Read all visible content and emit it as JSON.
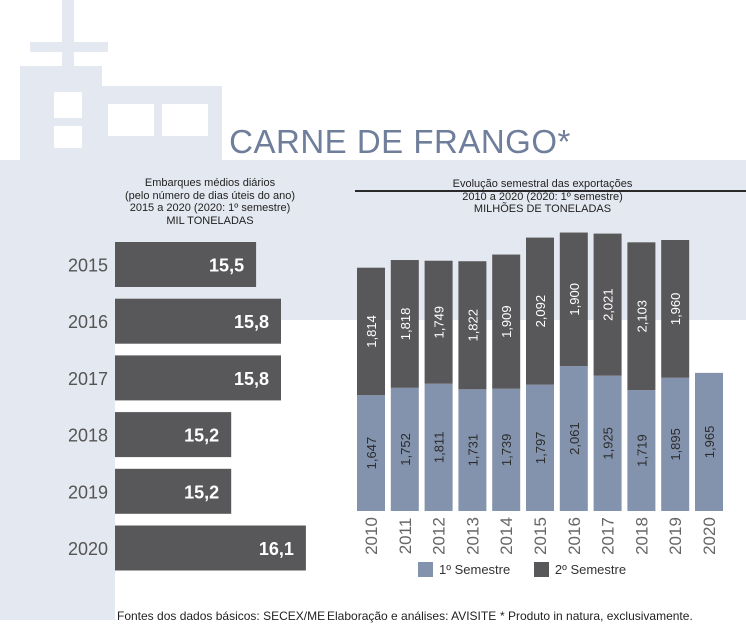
{
  "title": "CARNE DE FRANGO*",
  "left_panel": {
    "subtitle_lines": [
      "Embarques médios diários",
      "(pelo número de dias úteis do ano)",
      "2015 a 2020 (2020: 1º semestre)",
      "MIL TONELADAS"
    ]
  },
  "right_panel": {
    "subtitle_lines": [
      "Evolução semestral das exportações",
      "2010 a 2020 (2020: 1º semestre)",
      "MILHÕES DE  TONELADAS"
    ]
  },
  "legend": {
    "s1": "1º Semestre",
    "s2": "2º Semestre"
  },
  "footer": {
    "sources": "Fontes dos dados básicos: SECEX/ME",
    "analysis": "Elaboração e análises: AVISITE",
    "note": "* Produto in natura, exclusivamente."
  },
  "colors": {
    "dark_bar": "#58585a",
    "light_bar": "#8393ad",
    "title": "#6f7e9a",
    "background_ship": "#e4e8f0"
  },
  "chart_data": [
    {
      "type": "bar",
      "orientation": "horizontal",
      "categories": [
        "2015",
        "2016",
        "2017",
        "2018",
        "2019",
        "2020"
      ],
      "values": [
        15.5,
        15.8,
        15.8,
        15.2,
        15.2,
        16.1
      ],
      "labels": [
        "15,5",
        "15,8",
        "15,8",
        "15,2",
        "15,2",
        "16,1"
      ]
    },
    {
      "type": "bar",
      "stacked": true,
      "categories": [
        "2010",
        "2011",
        "2012",
        "2013",
        "2014",
        "2015",
        "2016",
        "2017",
        "2018",
        "2019",
        "2020"
      ],
      "series": [
        {
          "name": "1º Semestre",
          "values": [
            1.647,
            1.752,
            1.811,
            1.731,
            1.739,
            1.797,
            2.061,
            1.925,
            1.719,
            1.895,
            1.965
          ],
          "labels": [
            "1,647",
            "1,752",
            "1,811",
            "1,731",
            "1,739",
            "1,797",
            "2,061",
            "1,925",
            "1,719",
            "1,895",
            "1,965"
          ]
        },
        {
          "name": "2º Semestre",
          "values": [
            1.814,
            1.818,
            1.749,
            1.822,
            1.909,
            2.092,
            1.9,
            2.021,
            2.103,
            1.96,
            null
          ],
          "labels": [
            "1,814",
            "1,818",
            "1,749",
            "1,822",
            "1,909",
            "2,092",
            "1,900",
            "2,021",
            "2,103",
            "1,960",
            null
          ]
        }
      ],
      "legend": "bottom"
    }
  ]
}
